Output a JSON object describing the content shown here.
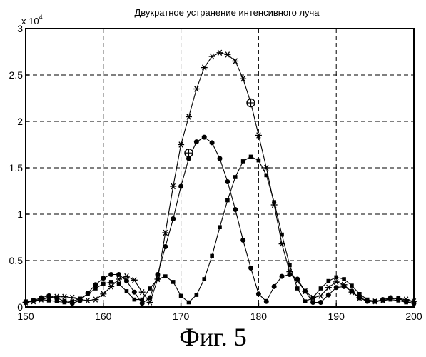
{
  "caption": "Фиг. 5",
  "chart_data": {
    "type": "line",
    "title": "Двукратное устранение интенсивного луча",
    "xlabel": "",
    "ylabel": "",
    "y_multiplier_label": "x 10",
    "y_multiplier_exponent": "4",
    "xlim": [
      150,
      200
    ],
    "ylim": [
      0,
      3
    ],
    "x_ticks": [
      150,
      160,
      170,
      180,
      190,
      200
    ],
    "x_tick_labels": [
      "150",
      "160",
      "170",
      "180",
      "190",
      "200"
    ],
    "y_ticks": [
      0,
      0.5,
      1,
      1.5,
      2,
      2.5,
      3
    ],
    "y_tick_labels": [
      "0",
      "0.5",
      "1",
      "1.5",
      "2",
      "2.5",
      "3"
    ],
    "grid": true,
    "series": [
      {
        "marker": "asterisk",
        "x": [
          150,
          151,
          152,
          153,
          154,
          155,
          156,
          157,
          158,
          159,
          160,
          161,
          162,
          163,
          164,
          165,
          166,
          167,
          168,
          169,
          170,
          171,
          172,
          173,
          174,
          175,
          176,
          177,
          178,
          179,
          180,
          181,
          182,
          183,
          184,
          185,
          186,
          187,
          188,
          189,
          190,
          191,
          192,
          193,
          194,
          195,
          196,
          197,
          198,
          199,
          200
        ],
        "values": [
          0.05,
          0.06,
          0.08,
          0.1,
          0.11,
          0.11,
          0.1,
          0.08,
          0.07,
          0.08,
          0.14,
          0.22,
          0.3,
          0.33,
          0.29,
          0.16,
          0.05,
          0.3,
          0.8,
          1.3,
          1.75,
          2.05,
          2.35,
          2.58,
          2.7,
          2.74,
          2.72,
          2.65,
          2.46,
          2.2,
          1.85,
          1.5,
          1.1,
          0.68,
          0.38,
          0.28,
          0.17,
          0.1,
          0.12,
          0.21,
          0.27,
          0.24,
          0.16,
          0.1,
          0.07,
          0.06,
          0.07,
          0.09,
          0.09,
          0.08,
          0.06
        ]
      },
      {
        "marker": "circle",
        "x": [
          150,
          151,
          152,
          153,
          154,
          155,
          156,
          157,
          158,
          159,
          160,
          161,
          162,
          163,
          164,
          165,
          166,
          167,
          168,
          169,
          170,
          171,
          172,
          173,
          174,
          175,
          176,
          177,
          178,
          179,
          180,
          181,
          182,
          183,
          184,
          185,
          186,
          187,
          188,
          189,
          190,
          191,
          192,
          193,
          194,
          195,
          196,
          197,
          198,
          199,
          200
        ],
        "values": [
          0.05,
          0.07,
          0.1,
          0.12,
          0.1,
          0.06,
          0.04,
          0.07,
          0.15,
          0.24,
          0.31,
          0.35,
          0.35,
          0.28,
          0.16,
          0.04,
          0.1,
          0.35,
          0.65,
          0.95,
          1.3,
          1.6,
          1.78,
          1.83,
          1.77,
          1.6,
          1.35,
          1.05,
          0.72,
          0.42,
          0.14,
          0.06,
          0.22,
          0.33,
          0.35,
          0.3,
          0.17,
          0.05,
          0.05,
          0.13,
          0.21,
          0.22,
          0.17,
          0.1,
          0.06,
          0.06,
          0.08,
          0.1,
          0.09,
          0.06,
          0.04
        ]
      },
      {
        "marker": "square",
        "x": [
          150,
          151,
          152,
          153,
          154,
          155,
          156,
          157,
          158,
          159,
          160,
          161,
          162,
          163,
          164,
          165,
          166,
          167,
          168,
          169,
          170,
          171,
          172,
          173,
          174,
          175,
          176,
          177,
          178,
          179,
          180,
          181,
          182,
          183,
          184,
          185,
          186,
          187,
          188,
          189,
          190,
          191,
          192,
          193,
          194,
          195,
          196,
          197,
          198,
          199,
          200
        ],
        "values": [
          0.06,
          0.07,
          0.08,
          0.07,
          0.06,
          0.05,
          0.06,
          0.09,
          0.14,
          0.2,
          0.25,
          0.27,
          0.25,
          0.17,
          0.08,
          0.08,
          0.2,
          0.3,
          0.33,
          0.27,
          0.12,
          0.05,
          0.13,
          0.3,
          0.55,
          0.86,
          1.15,
          1.4,
          1.57,
          1.62,
          1.58,
          1.42,
          1.13,
          0.78,
          0.45,
          0.2,
          0.06,
          0.1,
          0.2,
          0.28,
          0.32,
          0.3,
          0.23,
          0.14,
          0.08,
          0.06,
          0.07,
          0.08,
          0.07,
          0.05,
          0.04
        ]
      }
    ],
    "annotations": [
      {
        "marker": "circled-plus",
        "x": 171,
        "value": 1.66
      },
      {
        "marker": "circled-plus",
        "x": 179,
        "value": 2.2
      }
    ]
  }
}
